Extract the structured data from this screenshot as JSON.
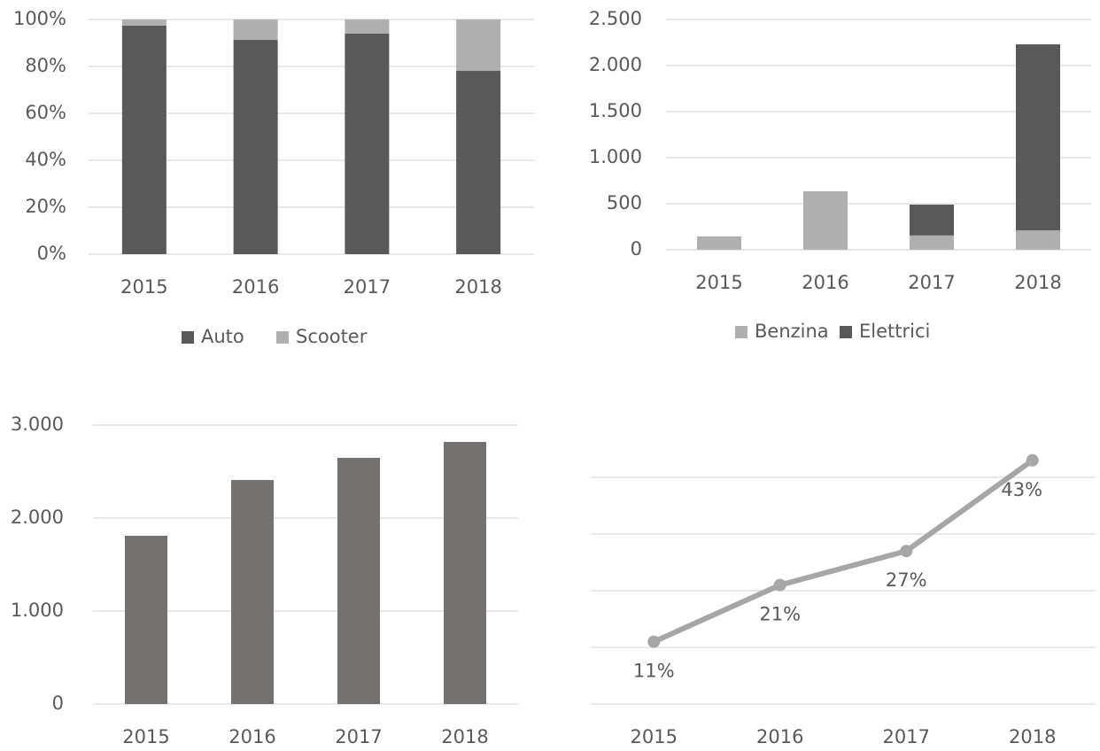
{
  "chart_data": [
    {
      "type": "stacked_bar",
      "categories": [
        "2015",
        "2016",
        "2017",
        "2018"
      ],
      "series": [
        {
          "name": "Auto",
          "color": "#595959",
          "values": [
            97.4,
            91.3,
            94,
            78.1
          ]
        },
        {
          "name": "Scooter",
          "color": "#afafaf",
          "values": [
            2.6,
            8.7,
            6,
            21.9
          ]
        }
      ],
      "ylim": [
        0,
        100
      ],
      "yticks": [
        {
          "value": 0,
          "label": "0%"
        },
        {
          "value": 20,
          "label": "20%"
        },
        {
          "value": 40,
          "label": "40%"
        },
        {
          "value": 60,
          "label": "60%"
        },
        {
          "value": 80,
          "label": "80%"
        },
        {
          "value": 100,
          "label": "100%"
        }
      ],
      "grid": true,
      "legend": "bottom"
    },
    {
      "type": "stacked_bar",
      "categories": [
        "2015",
        "2016",
        "2017",
        "2018"
      ],
      "series": [
        {
          "name": "Benzina",
          "color": "#afafaf",
          "values": [
            145,
            635,
            155,
            210
          ]
        },
        {
          "name": "Elettrici",
          "color": "#595959",
          "values": [
            0,
            0,
            335,
            2020
          ]
        }
      ],
      "ylim": [
        0,
        2500
      ],
      "yticks": [
        0,
        500,
        {
          "value": 1000,
          "label": "1.000"
        },
        {
          "value": 1500,
          "label": "1.500"
        },
        {
          "value": 2000,
          "label": "2.000"
        },
        {
          "value": 2500,
          "label": "2.500"
        }
      ],
      "grid": true,
      "legend": "bottom"
    },
    {
      "type": "bar",
      "categories": [
        "2015",
        "2016",
        "2017",
        "2018"
      ],
      "values": [
        1810,
        2410,
        2648,
        2819
      ],
      "color": "#767171",
      "ylim": [
        0,
        3000
      ],
      "yticks": [
        0,
        {
          "value": 1000,
          "label": "1.000"
        },
        {
          "value": 2000,
          "label": "2.000"
        },
        {
          "value": 3000,
          "label": "3.000"
        }
      ],
      "grid": true
    },
    {
      "type": "line",
      "categories": [
        "2015",
        "2016",
        "2017",
        "2018"
      ],
      "values": [
        11,
        21,
        27,
        43
      ],
      "value_labels": [
        "11%",
        "21%",
        "27%",
        "43%"
      ],
      "color": "#a6a6a6",
      "ylim": [
        0,
        50
      ],
      "yticks": [
        0,
        10,
        20,
        30,
        40
      ],
      "grid": true
    }
  ]
}
